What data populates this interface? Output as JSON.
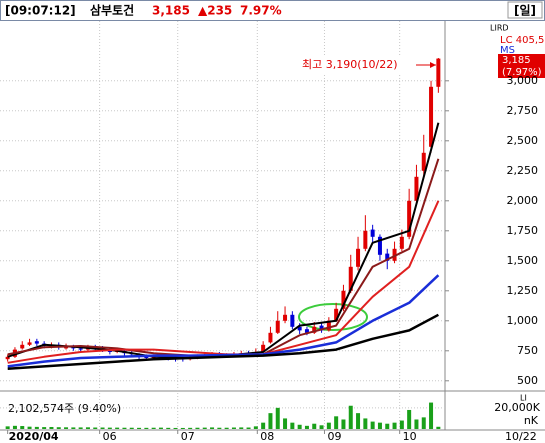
{
  "header": {
    "time": "[09:07:12]",
    "name": "삼부토건",
    "price": "3,185",
    "change": "▲235",
    "change_pct": "7.97%",
    "period": "[일]"
  },
  "side_labels": {
    "indicator": "LIRD",
    "lc": "LC 405,5",
    "ms": "MS",
    "volume_box": "LI"
  },
  "badge": {
    "price": "3,185",
    "pct": "(7.97%)"
  },
  "chart_data": {
    "type": "candlestick",
    "annotation": "최고 3,190(10/22)",
    "last_date": "10/22",
    "up_color": "#e00000",
    "down_color": "#0000d8",
    "xlim": [
      -0.5,
      59.5
    ],
    "xticks": [
      {
        "value": 0,
        "label": "2020/04"
      },
      {
        "value": 12.6,
        "label": "06"
      },
      {
        "value": 23.3,
        "label": "07"
      },
      {
        "value": 34.2,
        "label": "08"
      },
      {
        "value": 43.4,
        "label": "09"
      },
      {
        "value": 53.7,
        "label": "10"
      }
    ],
    "ylim": [
      440,
      3440
    ],
    "yticks": [
      {
        "value": 500,
        "label": "500"
      },
      {
        "value": 750,
        "label": "750"
      },
      {
        "value": 1000,
        "label": "1,000"
      },
      {
        "value": 1250,
        "label": "1,250"
      },
      {
        "value": 1500,
        "label": "1,500"
      },
      {
        "value": 1750,
        "label": "1,750"
      },
      {
        "value": 2000,
        "label": "2,000"
      },
      {
        "value": 2250,
        "label": "2,250"
      },
      {
        "value": 2500,
        "label": "2,500"
      },
      {
        "value": 2750,
        "label": "2,750"
      },
      {
        "value": 3000,
        "label": "3,000"
      }
    ],
    "grid": true,
    "open": [
      680,
      700,
      770,
      800,
      830,
      810,
      780,
      800,
      770,
      790,
      770,
      760,
      790,
      770,
      760,
      740,
      750,
      730,
      710,
      700,
      690,
      700,
      710,
      690,
      690,
      680,
      690,
      700,
      710,
      720,
      700,
      710,
      720,
      730,
      720,
      740,
      820,
      900,
      1000,
      1050,
      950,
      930,
      900,
      960,
      920,
      1000,
      1100,
      1250,
      1450,
      1600,
      1760,
      1700,
      1560,
      1500,
      1600,
      1700,
      2000,
      2250,
      2450,
      2950
    ],
    "high": [
      720,
      780,
      830,
      850,
      850,
      830,
      820,
      820,
      810,
      800,
      790,
      800,
      800,
      790,
      770,
      770,
      760,
      750,
      730,
      720,
      720,
      730,
      720,
      710,
      700,
      710,
      720,
      730,
      740,
      740,
      730,
      740,
      750,
      750,
      770,
      830,
      950,
      1080,
      1120,
      1080,
      980,
      950,
      990,
      980,
      1030,
      1150,
      1300,
      1550,
      1700,
      1880,
      1800,
      1720,
      1600,
      1660,
      1760,
      2100,
      2300,
      2550,
      3000,
      3190
    ],
    "low": [
      660,
      690,
      760,
      790,
      790,
      770,
      770,
      760,
      760,
      750,
      740,
      750,
      750,
      740,
      720,
      730,
      710,
      700,
      680,
      670,
      680,
      690,
      670,
      660,
      660,
      670,
      680,
      690,
      700,
      690,
      690,
      700,
      710,
      700,
      710,
      730,
      810,
      890,
      980,
      930,
      890,
      880,
      890,
      900,
      910,
      990,
      1080,
      1230,
      1420,
      1580,
      1650,
      1500,
      1430,
      1480,
      1580,
      1680,
      1960,
      2200,
      2400,
      2900
    ],
    "close": [
      700,
      760,
      800,
      820,
      810,
      790,
      800,
      780,
      790,
      770,
      760,
      780,
      770,
      760,
      740,
      750,
      730,
      720,
      700,
      690,
      700,
      710,
      690,
      680,
      680,
      690,
      700,
      710,
      720,
      700,
      710,
      720,
      730,
      720,
      740,
      800,
      900,
      1000,
      1050,
      950,
      920,
      900,
      950,
      920,
      1000,
      1100,
      1250,
      1450,
      1600,
      1750,
      1700,
      1550,
      1500,
      1600,
      1700,
      2000,
      2200,
      2400,
      2950,
      3185
    ],
    "ma_x": [
      0,
      5,
      10,
      15,
      20,
      25,
      30,
      35,
      40,
      45,
      50,
      55,
      59
    ],
    "series": [
      {
        "name": "MA5",
        "color": "#000000",
        "width": 2,
        "values": [
          700,
          800,
          780,
          750,
          700,
          690,
          710,
          740,
          960,
          1000,
          1650,
          1750,
          2650
        ]
      },
      {
        "name": "MA20",
        "color": "#8b1a1a",
        "width": 2,
        "values": [
          720,
          780,
          790,
          770,
          730,
          710,
          700,
          720,
          880,
          960,
          1450,
          1600,
          2350
        ]
      },
      {
        "name": "MA60",
        "color": "#e02020",
        "width": 2,
        "values": [
          650,
          700,
          740,
          760,
          760,
          740,
          720,
          720,
          800,
          880,
          1200,
          1450,
          2000
        ]
      },
      {
        "name": "MA120",
        "color": "#1a2ed8",
        "width": 2.5,
        "values": [
          620,
          660,
          690,
          700,
          710,
          710,
          715,
          720,
          760,
          820,
          1000,
          1150,
          1380
        ]
      },
      {
        "name": "MA240",
        "color": "#000000",
        "width": 2.5,
        "values": [
          600,
          620,
          640,
          660,
          680,
          690,
          700,
          710,
          730,
          760,
          850,
          920,
          1050
        ]
      }
    ],
    "volume": {
      "label": "2,102,574주 (9.40%)",
      "color": "#1aa01a",
      "unit_label": "nK",
      "ylim": [
        0,
        35000
      ],
      "yticks": [
        {
          "value": 20000,
          "label": "20,000K"
        }
      ],
      "values": [
        2500,
        3000,
        2800,
        2200,
        2000,
        1800,
        1900,
        1700,
        1600,
        1500,
        1500,
        1600,
        1400,
        1400,
        1300,
        1300,
        1200,
        1200,
        1100,
        1100,
        1200,
        1300,
        1100,
        1000,
        1000,
        1100,
        1200,
        1300,
        1500,
        1200,
        1200,
        1400,
        1500,
        1400,
        2500,
        6000,
        15000,
        20000,
        10000,
        6000,
        4000,
        3000,
        5000,
        3500,
        6000,
        12000,
        9000,
        22000,
        15000,
        10000,
        7000,
        6000,
        5000,
        6000,
        8000,
        18000,
        9000,
        11000,
        25000,
        2102.574
      ]
    }
  }
}
